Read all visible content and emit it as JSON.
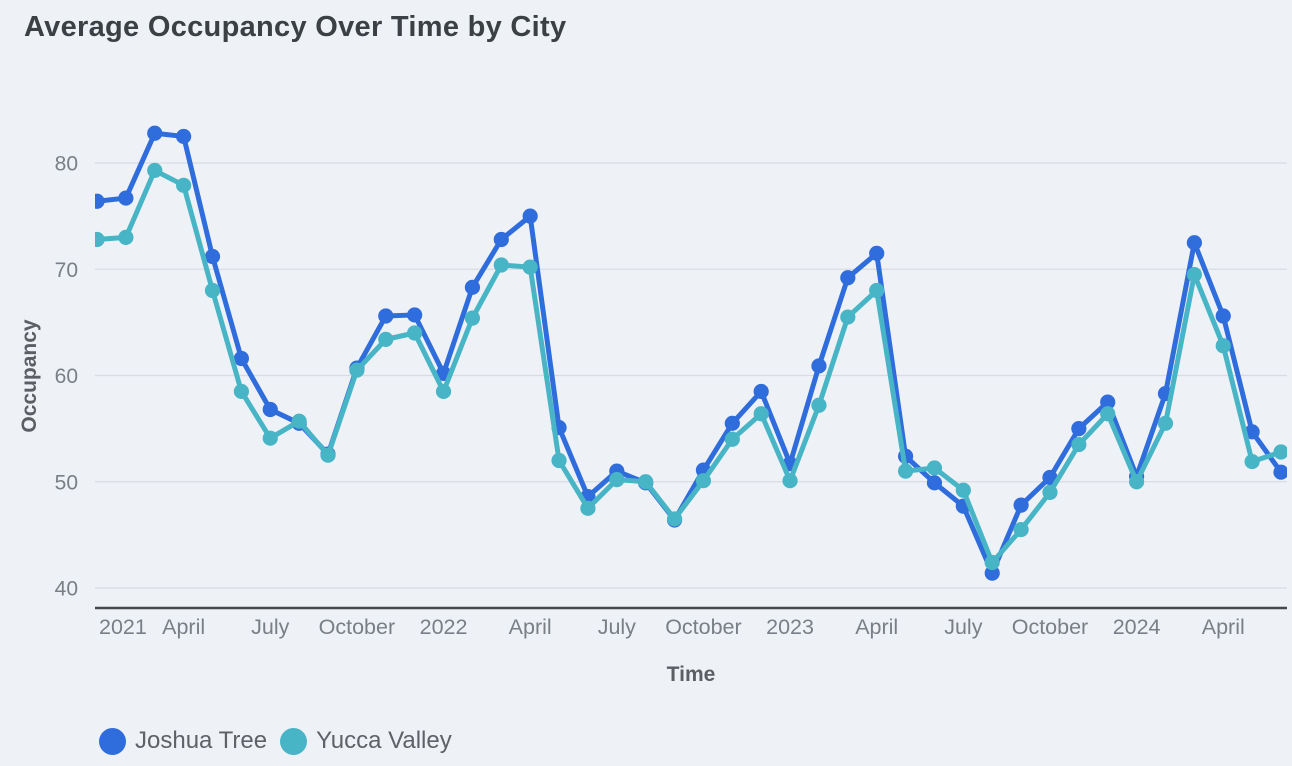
{
  "chart": {
    "title": "Average Occupancy Over Time by City",
    "colors": {
      "background": "#eef1f6",
      "gridline": "#d8dbe1",
      "axis_line": "#45474a",
      "tick_label": "#797f87",
      "axis_title": "#5b5f64",
      "title_text": "#3b4045",
      "legend_text": "#5e6267"
    }
  },
  "chart_data": {
    "type": "line",
    "title": "Average Occupancy Over Time by City",
    "xlabel": "Time",
    "ylabel": "Occupancy",
    "ylim": [
      38,
      85
    ],
    "yticks": [
      40,
      50,
      60,
      70,
      80
    ],
    "grid": true,
    "legend_position": "bottom-left",
    "x": [
      "2021-01",
      "2021-02",
      "2021-03",
      "2021-04",
      "2021-05",
      "2021-06",
      "2021-07",
      "2021-08",
      "2021-09",
      "2021-10",
      "2021-11",
      "2021-12",
      "2022-01",
      "2022-02",
      "2022-03",
      "2022-04",
      "2022-05",
      "2022-06",
      "2022-07",
      "2022-08",
      "2022-09",
      "2022-10",
      "2022-11",
      "2022-12",
      "2023-01",
      "2023-02",
      "2023-03",
      "2023-04",
      "2023-05",
      "2023-06",
      "2023-07",
      "2023-08",
      "2023-09",
      "2023-10",
      "2023-11",
      "2023-12",
      "2024-01",
      "2024-02",
      "2024-03",
      "2024-04",
      "2024-05",
      "2024-06"
    ],
    "xticks": {
      "indices": [
        0,
        3,
        6,
        9,
        12,
        15,
        18,
        21,
        24,
        27,
        30,
        33,
        36,
        39
      ],
      "labels": [
        "2021",
        "April",
        "July",
        "October",
        "2022",
        "April",
        "July",
        "October",
        "2023",
        "April",
        "July",
        "October",
        "2024",
        "April"
      ]
    },
    "series": [
      {
        "name": "Joshua Tree",
        "color": "#2f6cdc",
        "values": [
          76.4,
          76.7,
          82.8,
          82.5,
          71.2,
          61.6,
          56.8,
          55.5,
          52.6,
          60.7,
          65.6,
          65.7,
          60.2,
          68.3,
          72.8,
          75.0,
          55.1,
          48.6,
          51.0,
          49.9,
          46.4,
          51.1,
          55.5,
          58.5,
          51.7,
          60.9,
          69.2,
          71.5,
          52.4,
          49.9,
          47.7,
          41.4,
          47.8,
          50.4,
          55.0,
          57.5,
          50.5,
          58.3,
          72.5,
          65.6,
          54.7,
          50.9
        ]
      },
      {
        "name": "Yucca Valley",
        "color": "#47b5c5",
        "values": [
          72.8,
          73.0,
          79.3,
          77.9,
          68.0,
          58.5,
          54.1,
          55.7,
          52.5,
          60.5,
          63.4,
          64.0,
          58.5,
          65.4,
          70.4,
          70.2,
          52.0,
          47.5,
          50.2,
          50.0,
          46.5,
          50.1,
          54.0,
          56.4,
          50.1,
          57.2,
          65.5,
          68.0,
          51.0,
          51.3,
          49.2,
          42.4,
          45.5,
          49.0,
          53.5,
          56.4,
          50.0,
          55.5,
          69.5,
          62.8,
          51.9,
          52.8
        ]
      }
    ]
  }
}
